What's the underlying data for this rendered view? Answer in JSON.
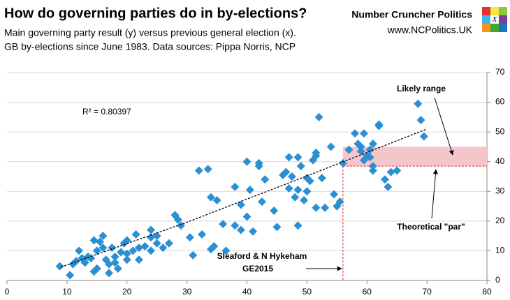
{
  "chart_data": {
    "type": "scatter",
    "title": "How do governing parties do in by-elections?",
    "subtitle": [
      "Main governing party result (y) versus previous general election (x).",
      "GB by-elections since June 1983. Data sources: Pippa Norris, NCP"
    ],
    "brand": [
      "Number Cruncher Politics",
      "www.NCPolitics.UK"
    ],
    "logo_text": "X",
    "xlim": [
      0,
      80
    ],
    "xticks": [
      0,
      10,
      20,
      30,
      40,
      50,
      60,
      70,
      80
    ],
    "ylim": [
      0,
      70
    ],
    "yticks": [
      0,
      10,
      20,
      30,
      40,
      50,
      60,
      70
    ],
    "grid": true,
    "series": [
      {
        "color": "#2b8fd3",
        "x": [
          8.8,
          10.5,
          11,
          11.5,
          12,
          12.5,
          13,
          13.5,
          14,
          14.5,
          14.5,
          15,
          15,
          15.5,
          16,
          16,
          16.5,
          17,
          17,
          17.5,
          18,
          18,
          18.5,
          19,
          19.5,
          20,
          20,
          20,
          21,
          21.5,
          22,
          22,
          23,
          24,
          24,
          24,
          25,
          25,
          26,
          27,
          28,
          28.5,
          29,
          30.5,
          31,
          32,
          32.5,
          33.5,
          34,
          34,
          34.5,
          35,
          36,
          36.5,
          38,
          38,
          39,
          39,
          40,
          40,
          40.5,
          41,
          42,
          42,
          42.5,
          43,
          44.5,
          45,
          46,
          46.5,
          47,
          47,
          47.5,
          48,
          48.5,
          48.5,
          48.5,
          49,
          49.5,
          50,
          50,
          50.5,
          51,
          51.5,
          51.5,
          51.5,
          52,
          52.5,
          53,
          54,
          54.5,
          55,
          55.5,
          56,
          57,
          58,
          58.5,
          59,
          59,
          59.5,
          59.5,
          60,
          60.5,
          60.5,
          61,
          61,
          61,
          62,
          62,
          63,
          63.5,
          64,
          65,
          68.5,
          69,
          69.5
        ],
        "values": [
          4.8,
          1.8,
          5.5,
          6.5,
          10,
          7.5,
          6,
          8,
          7.5,
          3,
          13.5,
          4,
          10,
          13,
          15,
          11,
          7,
          5.5,
          2.5,
          11,
          8,
          6,
          4,
          9.5,
          12.5,
          7,
          9,
          13.5,
          10,
          15.5,
          7,
          11,
          11.5,
          17,
          14.5,
          10,
          12.5,
          15,
          11,
          12.5,
          22,
          20.5,
          18.5,
          14.5,
          8.5,
          37,
          15.5,
          37.5,
          28,
          10.5,
          11.5,
          27,
          19,
          10,
          31.5,
          18.5,
          25.5,
          17,
          40,
          21.5,
          30.5,
          16.5,
          39.5,
          38.5,
          26.5,
          34,
          23.5,
          18,
          35.5,
          36.5,
          31,
          41.5,
          35,
          28,
          41.5,
          30.5,
          18.5,
          38.5,
          27,
          34.5,
          30,
          33.5,
          40.5,
          43,
          42,
          24.5,
          55,
          34.5,
          24.5,
          45,
          29,
          25,
          26.5,
          39.5,
          44,
          49.5,
          46,
          43.5,
          45,
          49.5,
          40.5,
          42,
          41.5,
          44,
          46,
          38.5,
          37,
          52,
          52.5,
          34,
          31.5,
          36.5,
          37,
          59.5,
          54,
          48.5
        ]
      }
    ],
    "trendline": {
      "label": "R² = 0.80397",
      "x": [
        9,
        30,
        50,
        70
      ],
      "y": [
        4.5,
        19.6,
        35.2,
        51
      ]
    },
    "likely_range": {
      "label": "Likely range",
      "xlim": [
        56,
        80
      ],
      "ylim": [
        38.5,
        45
      ],
      "color": "#f4c6cc"
    },
    "par": {
      "label": "Theoretical \"par\"",
      "value": 38.5
    },
    "sleaford": {
      "label": [
        "Sleaford & N Hykeham",
        "GE2015"
      ],
      "x": 56
    }
  }
}
